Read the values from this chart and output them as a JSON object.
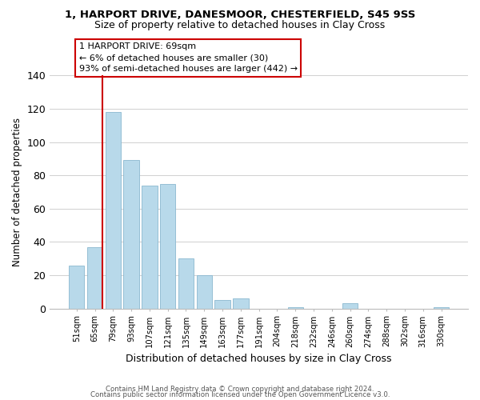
{
  "title1": "1, HARPORT DRIVE, DANESMOOR, CHESTERFIELD, S45 9SS",
  "title2": "Size of property relative to detached houses in Clay Cross",
  "xlabel": "Distribution of detached houses by size in Clay Cross",
  "ylabel": "Number of detached properties",
  "bar_labels": [
    "51sqm",
    "65sqm",
    "79sqm",
    "93sqm",
    "107sqm",
    "121sqm",
    "135sqm",
    "149sqm",
    "163sqm",
    "177sqm",
    "191sqm",
    "204sqm",
    "218sqm",
    "232sqm",
    "246sqm",
    "260sqm",
    "274sqm",
    "288sqm",
    "302sqm",
    "316sqm",
    "330sqm"
  ],
  "bar_heights": [
    26,
    37,
    118,
    89,
    74,
    75,
    30,
    20,
    5,
    6,
    0,
    0,
    1,
    0,
    0,
    3,
    0,
    0,
    0,
    0,
    1
  ],
  "bar_color": "#b8d9ea",
  "bar_edge_color": "#8ab8d0",
  "vline_color": "#cc0000",
  "annotation_line1": "1 HARPORT DRIVE: 69sqm",
  "annotation_line2": "← 6% of detached houses are smaller (30)",
  "annotation_line3": "93% of semi-detached houses are larger (442) →",
  "annotation_box_color": "#ffffff",
  "annotation_border_color": "#cc0000",
  "ylim": [
    0,
    140
  ],
  "yticks": [
    0,
    20,
    40,
    60,
    80,
    100,
    120,
    140
  ],
  "footnote1": "Contains HM Land Registry data © Crown copyright and database right 2024.",
  "footnote2": "Contains public sector information licensed under the Open Government Licence v3.0.",
  "background_color": "#ffffff",
  "grid_color": "#d0d0d0"
}
